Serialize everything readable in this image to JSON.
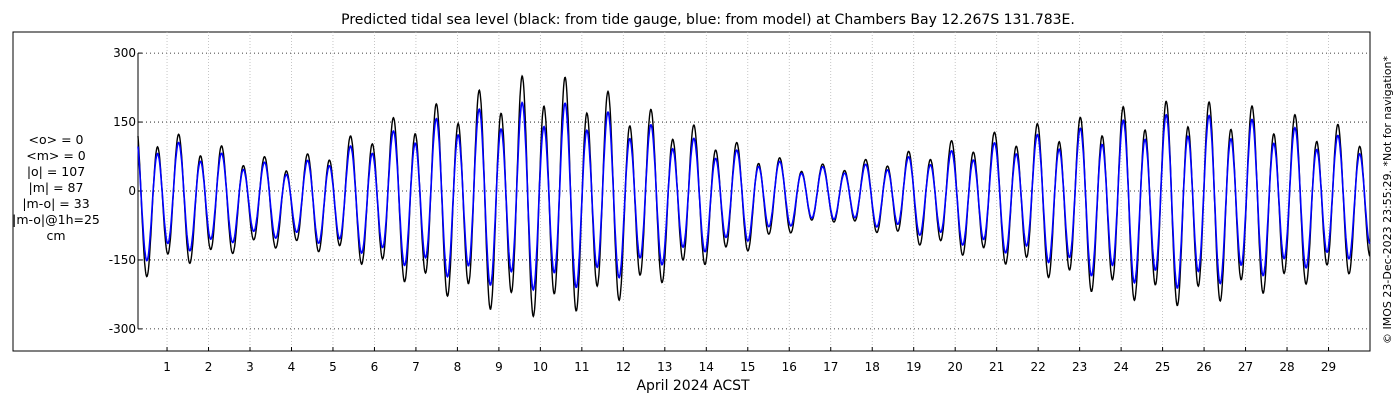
{
  "chart_data": {
    "type": "line",
    "title": "Predicted tidal sea level (black: from tide gauge, blue: from model) at Chambers Bay 12.267S 131.783E.",
    "xlabel": "April 2024 ACST",
    "ylabel": "",
    "xlim": [
      0.3,
      30.0
    ],
    "ylim": [
      -320,
      320
    ],
    "y_ticks": [
      300,
      150,
      0,
      -150,
      -300
    ],
    "x_ticks": [
      1,
      2,
      3,
      4,
      5,
      6,
      7,
      8,
      9,
      10,
      11,
      12,
      13,
      14,
      15,
      16,
      17,
      18,
      19,
      20,
      21,
      22,
      23,
      24,
      25,
      26,
      27,
      28,
      29
    ],
    "grid": "dotted",
    "units": "cm",
    "series": [
      {
        "name": "tide gauge",
        "color": "#000000",
        "days": [
          0.3,
          1.0,
          2.0,
          3.0,
          4.0,
          5.0,
          6.0,
          7.0,
          8.0,
          9.0,
          9.5,
          10.0,
          10.5,
          11.0,
          12.0,
          13.0,
          14.0,
          15.0,
          16.0,
          16.5,
          17.0,
          18.0,
          19.0,
          20.0,
          21.0,
          22.0,
          23.0,
          24.0,
          25.0,
          25.5,
          26.0,
          27.0,
          28.0,
          29.0,
          30.0
        ],
        "amplitude": [
          155,
          130,
          115,
          90,
          85,
          105,
          140,
          170,
          195,
          220,
          230,
          235,
          230,
          220,
          195,
          160,
          130,
          100,
          70,
          60,
          55,
          70,
          90,
          110,
          125,
          145,
          165,
          185,
          195,
          200,
          195,
          185,
          170,
          150,
          135
        ],
        "mean_offset": [
          -25,
          -20,
          -25,
          -25,
          -30,
          -20,
          -15,
          -20,
          -20,
          -20,
          -15,
          -15,
          -15,
          -15,
          -20,
          -20,
          -15,
          -20,
          -15,
          -10,
          -5,
          -10,
          -15,
          -15,
          -15,
          -20,
          -30,
          -30,
          -30,
          -30,
          -30,
          -25,
          -25,
          -25,
          -20
        ]
      },
      {
        "name": "model",
        "color": "#0000ff",
        "days": [
          0.3,
          1.0,
          2.0,
          3.0,
          4.0,
          5.0,
          6.0,
          7.0,
          8.0,
          9.0,
          9.5,
          10.0,
          10.5,
          11.0,
          12.0,
          13.0,
          14.0,
          15.0,
          16.0,
          16.5,
          17.0,
          18.0,
          19.0,
          20.0,
          21.0,
          22.0,
          23.0,
          24.0,
          25.0,
          25.5,
          26.0,
          27.0,
          28.0,
          29.0,
          30.0
        ],
        "amplitude": [
          125,
          110,
          95,
          75,
          70,
          90,
          115,
          140,
          160,
          175,
          180,
          182,
          180,
          175,
          155,
          130,
          105,
          85,
          60,
          55,
          50,
          60,
          75,
          90,
          105,
          120,
          140,
          155,
          165,
          170,
          165,
          155,
          140,
          125,
          110
        ],
        "mean_offset": [
          -20,
          -15,
          -20,
          -20,
          -25,
          -20,
          -15,
          -15,
          -15,
          -15,
          -15,
          -15,
          -15,
          -15,
          -15,
          -15,
          -15,
          -15,
          -10,
          -10,
          -5,
          -10,
          -10,
          -15,
          -15,
          -15,
          -25,
          -25,
          -25,
          -25,
          -25,
          -20,
          -20,
          -20,
          -15
        ]
      }
    ],
    "cycle_days": 1.035,
    "phase_days": 0.25,
    "diurnal_ratio": 0.18
  },
  "stats": {
    "mean_obs": "<o> = 0",
    "mean_model": "<m> = 0",
    "abs_obs": "|o| = 107",
    "abs_model": "|m| = 87",
    "abs_diff": "|m-o| = 33",
    "abs_diff_1h": "|m-o|@1h=25",
    "unit": "cm"
  },
  "credit": "© IMOS 23-Dec-2023 23:55:29. *Not for navigation*"
}
